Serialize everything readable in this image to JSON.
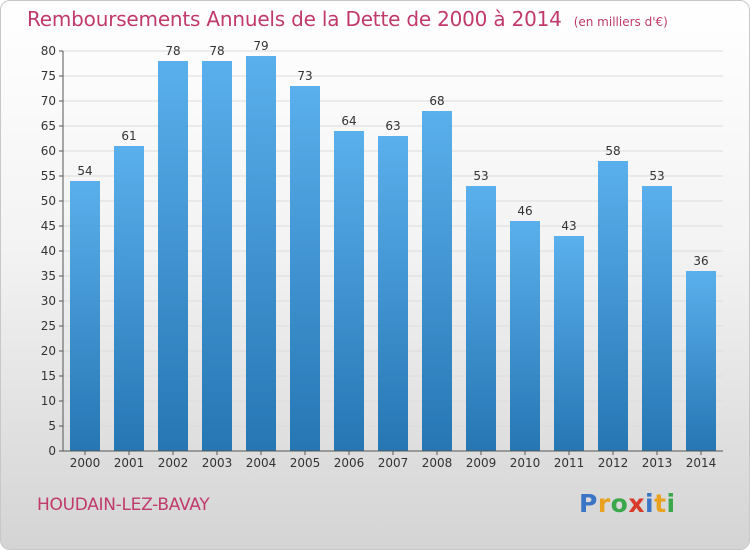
{
  "title": "Remboursements Annuels de la Dette de 2000 à 2014",
  "subtitle": "(en milliers d'€)",
  "commune": "HOUDAIN-LEZ-BAVAY",
  "logo": {
    "text": "Proxiti",
    "letters": [
      {
        "char": "P",
        "color": "#3a74c4"
      },
      {
        "char": "r",
        "color": "#e8a21f"
      },
      {
        "char": "o",
        "color": "#3aa84a"
      },
      {
        "char": "x",
        "color": "#d83a2a"
      },
      {
        "char": "i",
        "color": "#3a74c4"
      },
      {
        "char": "t",
        "color": "#e8a21f"
      },
      {
        "char": "i",
        "color": "#3aa84a"
      }
    ]
  },
  "colors": {
    "bar_top": "#5ab0ec",
    "bar_bottom": "#2676b4",
    "grid": "#dcdcdc",
    "axis": "#555555",
    "text": "#333333",
    "accent": "#c03a6b"
  },
  "chart_data": {
    "type": "bar",
    "title": "Remboursements Annuels de la Dette de 2000 à 2014",
    "subtitle": "(en milliers d'€)",
    "xlabel": "",
    "ylabel": "",
    "ylim": [
      0,
      80
    ],
    "ytick_step": 5,
    "grid": true,
    "categories": [
      "2000",
      "2001",
      "2002",
      "2003",
      "2004",
      "2005",
      "2006",
      "2007",
      "2008",
      "2009",
      "2010",
      "2011",
      "2012",
      "2013",
      "2014"
    ],
    "values": [
      54,
      61,
      78,
      78,
      79,
      73,
      64,
      63,
      68,
      53,
      46,
      43,
      58,
      53,
      36
    ],
    "data_labels": true
  }
}
